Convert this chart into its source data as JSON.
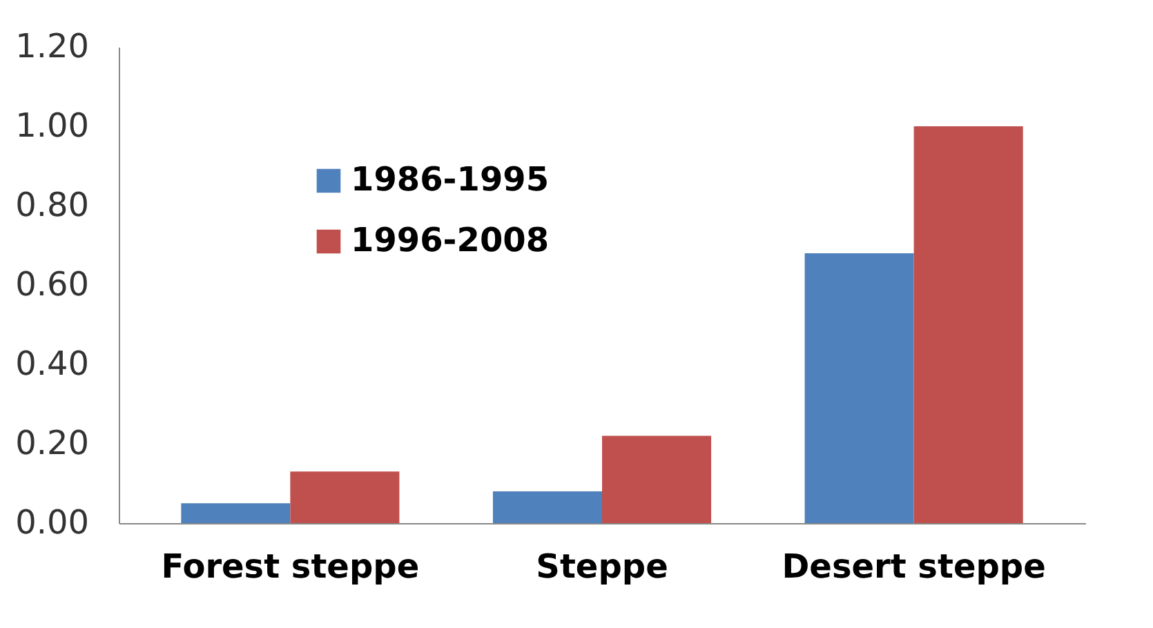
{
  "chart_data": {
    "type": "bar",
    "categories": [
      "Forest steppe",
      "Steppe",
      "Desert steppe"
    ],
    "series": [
      {
        "name": "1986-1995",
        "color": "#4f81bd",
        "values": [
          0.05,
          0.08,
          0.68
        ]
      },
      {
        "name": "1996-2008",
        "color": "#c0504d",
        "values": [
          0.13,
          0.22,
          1.0
        ]
      }
    ],
    "ylim": [
      0,
      1.2
    ],
    "yticks": [
      {
        "value": 0,
        "label": "0.00"
      },
      {
        "value": 0.2,
        "label": "0.20"
      },
      {
        "value": 0.4,
        "label": "0.40"
      },
      {
        "value": 0.6,
        "label": "0.60"
      },
      {
        "value": 0.8,
        "label": "0.80"
      },
      {
        "value": 1,
        "label": "1.00"
      },
      {
        "value": 1.2,
        "label": "1.20"
      }
    ],
    "grid": false,
    "legend": "top left"
  }
}
